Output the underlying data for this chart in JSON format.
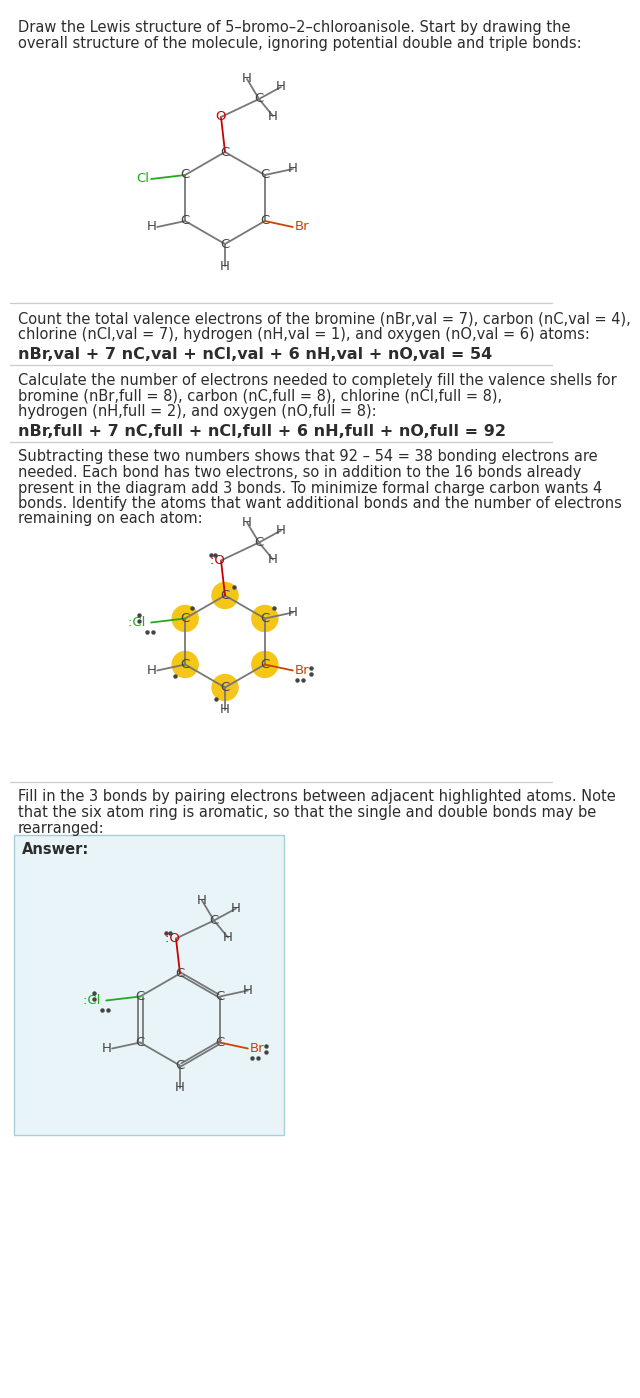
{
  "bg_color": "#ffffff",
  "text_color": "#2d2d2d",
  "Cl_color": "#22aa22",
  "Br_color": "#cc4400",
  "O_color": "#cc0000",
  "C_color": "#444444",
  "H_color": "#444444",
  "bond_color": "#777777",
  "highlight_color": "#f5c518",
  "answer_box_color": "#e8f4f8",
  "answer_box_edge": "#aaccdd",
  "sep_color": "#cccccc",
  "title_line1": "Draw the Lewis structure of 5–bromo–2–chloroanisole. Start by drawing the",
  "title_line2": "overall structure of the molecule, ignoring potential double and triple bonds:",
  "s2_line1": "Count the total valence electrons of the bromine (nBr,val = 7), carbon (nC,val = 4),",
  "s2_line2": "chlorine (nCl,val = 7), hydrogen (nH,val = 1), and oxygen (nO,val = 6) atoms:",
  "s2_formula": "nBr,val + 7 nC,val + nCl,val + 6 nH,val + nO,val = 54",
  "s3_line1": "Calculate the number of electrons needed to completely fill the valence shells for",
  "s3_line2": "bromine (nBr,full = 8), carbon (nC,full = 8), chlorine (nCl,full = 8),",
  "s3_line3": "hydrogen (nH,full = 2), and oxygen (nO,full = 8):",
  "s3_formula": "nBr,full + 7 nC,full + nCl,full + 6 nH,full + nO,full = 92",
  "s4_line1": "Subtracting these two numbers shows that 92 – 54 = 38 bonding electrons are",
  "s4_line2": "needed. Each bond has two electrons, so in addition to the 16 bonds already",
  "s4_line3": "present in the diagram add 3 bonds. To minimize formal charge carbon wants 4",
  "s4_line4": "bonds. Identify the atoms that want additional bonds and the number of electrons",
  "s4_line5": "remaining on each atom:",
  "s5_line1": "Fill in the 3 bonds by pairing electrons between adjacent highlighted atoms. Note",
  "s5_line2": "that the six atom ring is aromatic, so that the single and double bonds may be",
  "s5_line3": "rearranged:",
  "answer_label": "Answer:"
}
